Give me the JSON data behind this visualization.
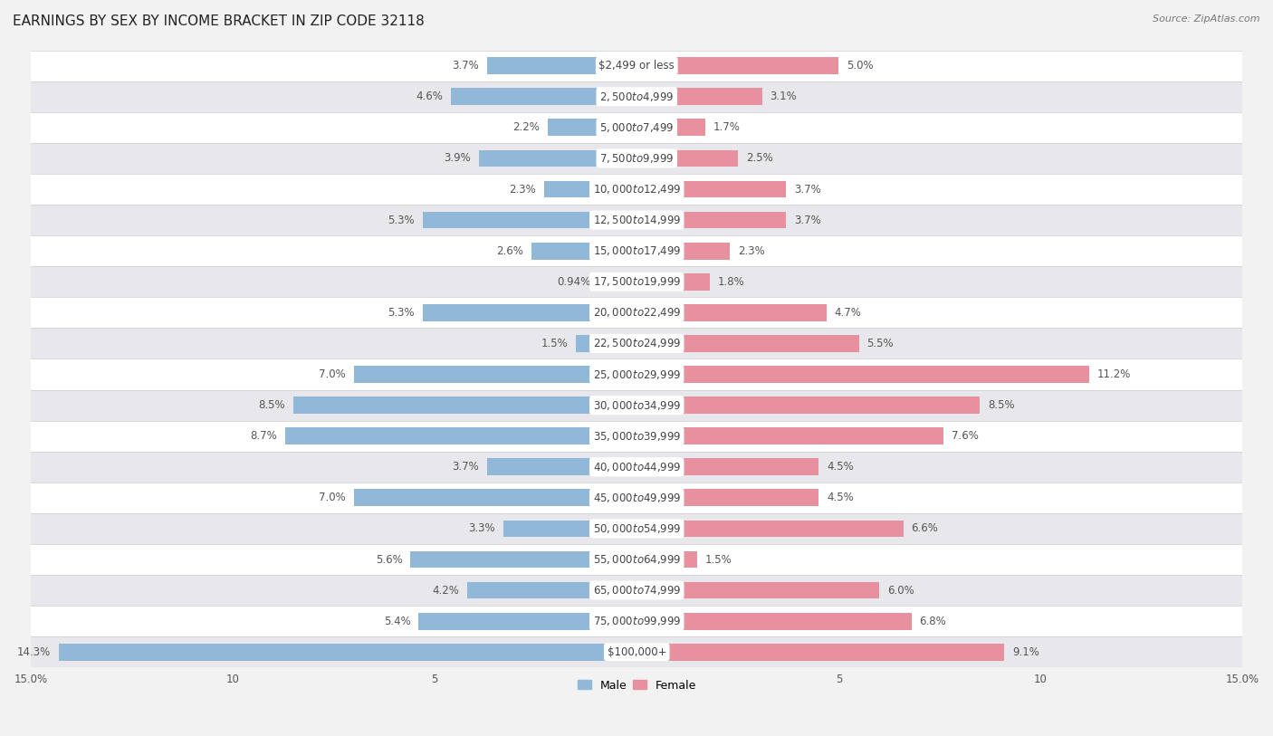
{
  "title": "EARNINGS BY SEX BY INCOME BRACKET IN ZIP CODE 32118",
  "source": "Source: ZipAtlas.com",
  "categories": [
    "$2,499 or less",
    "$2,500 to $4,999",
    "$5,000 to $7,499",
    "$7,500 to $9,999",
    "$10,000 to $12,499",
    "$12,500 to $14,999",
    "$15,000 to $17,499",
    "$17,500 to $19,999",
    "$20,000 to $22,499",
    "$22,500 to $24,999",
    "$25,000 to $29,999",
    "$30,000 to $34,999",
    "$35,000 to $39,999",
    "$40,000 to $44,999",
    "$45,000 to $49,999",
    "$50,000 to $54,999",
    "$55,000 to $64,999",
    "$65,000 to $74,999",
    "$75,000 to $99,999",
    "$100,000+"
  ],
  "male_values": [
    3.7,
    4.6,
    2.2,
    3.9,
    2.3,
    5.3,
    2.6,
    0.94,
    5.3,
    1.5,
    7.0,
    8.5,
    8.7,
    3.7,
    7.0,
    3.3,
    5.6,
    4.2,
    5.4,
    14.3
  ],
  "female_values": [
    5.0,
    3.1,
    1.7,
    2.5,
    3.7,
    3.7,
    2.3,
    1.8,
    4.7,
    5.5,
    11.2,
    8.5,
    7.6,
    4.5,
    4.5,
    6.6,
    1.5,
    6.0,
    6.8,
    9.1
  ],
  "male_color": "#92b8d8",
  "female_color": "#e8919e",
  "male_label": "Male",
  "female_label": "Female",
  "xlim": 15.0,
  "background_color": "#f2f2f2",
  "row_color_even": "#ffffff",
  "row_color_odd": "#e8e8ec",
  "title_fontsize": 11,
  "label_fontsize": 8.5,
  "cat_fontsize": 8.5,
  "bar_height": 0.55
}
